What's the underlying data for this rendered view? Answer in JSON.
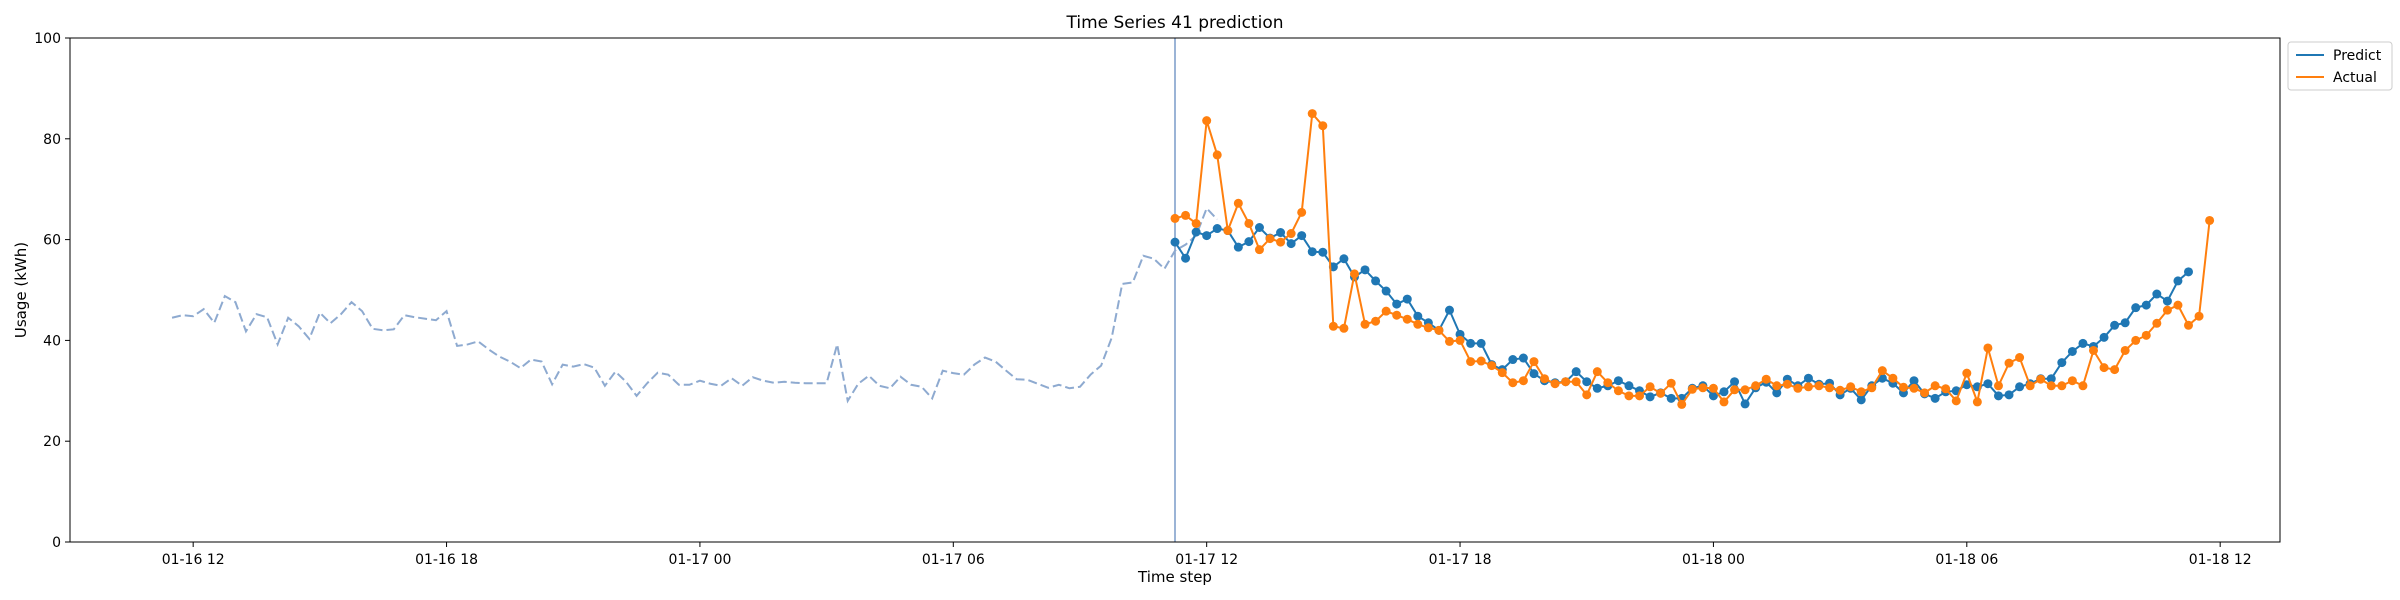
{
  "chart_data": {
    "type": "line",
    "title": "Time Series 41 prediction",
    "xlabel": "Time step",
    "ylabel": "Usage (kWh)",
    "ylim": [
      0,
      100
    ],
    "xlim": [
      "2024-01-16 09:05",
      "2024-01-18 13:25"
    ],
    "yticks": [
      0,
      20,
      40,
      60,
      80,
      100
    ],
    "xticks": [
      {
        "t": "2024-01-16 12:00",
        "label": "01-16 12"
      },
      {
        "t": "2024-01-16 18:00",
        "label": "01-16 18"
      },
      {
        "t": "2024-01-17 00:00",
        "label": "01-17 00"
      },
      {
        "t": "2024-01-17 06:00",
        "label": "01-17 06"
      },
      {
        "t": "2024-01-17 12:00",
        "label": "01-17 12"
      },
      {
        "t": "2024-01-17 18:00",
        "label": "01-17 18"
      },
      {
        "t": "2024-01-18 00:00",
        "label": "01-18 00"
      },
      {
        "t": "2024-01-18 06:00",
        "label": "01-18 06"
      },
      {
        "t": "2024-01-18 12:00",
        "label": "01-18 12"
      }
    ],
    "grid": false,
    "legend_position": "top-right, outside plot",
    "forecast_start": "2024-01-17 11:15",
    "colors": {
      "predict": "#1f77b4",
      "actual": "#ff7f0e",
      "history": "#8eaad0",
      "divider": "#7a9cc8"
    },
    "history": {
      "start": "2024-01-16 11:30",
      "step_minutes": 15,
      "values": [
        44.5,
        45.0,
        44.8,
        46.2,
        43.5,
        48.8,
        47.6,
        41.8,
        45.2,
        44.6,
        39.2,
        44.5,
        42.8,
        40.3,
        45.5,
        43.4,
        45.2,
        47.6,
        45.8,
        42.3,
        42.0,
        42.2,
        45.0,
        44.6,
        44.3,
        44.0,
        45.8,
        38.9,
        39.2,
        39.8,
        38.2,
        36.8,
        35.8,
        34.5,
        36.2,
        35.8,
        31.3,
        35.2,
        34.8,
        35.3,
        34.6,
        31.0,
        33.8,
        31.8,
        29.0,
        31.5,
        33.6,
        33.2,
        31.2,
        31.2,
        32.0,
        31.4,
        31.0,
        32.5,
        31.0,
        32.7,
        32.0,
        31.6,
        31.8,
        31.6,
        31.5,
        31.5,
        31.5,
        39.2,
        28.0,
        31.4,
        33.0,
        31.0,
        30.5,
        32.8,
        31.2,
        30.8,
        28.5,
        34.0,
        33.5,
        33.2,
        35.2,
        36.6,
        35.8,
        34.0,
        32.3,
        32.2,
        31.4,
        30.6,
        31.2,
        30.5,
        30.8,
        33.2,
        35.0,
        40.5,
        51.2,
        51.5,
        56.8,
        56.2,
        54.2,
        57.8,
        59.0,
        60.8,
        66.2,
        64.0
      ]
    },
    "series": [
      {
        "name": "Predict",
        "start": "2024-01-17 11:15",
        "step_minutes": 15,
        "values": [
          59.5,
          56.3,
          61.5,
          60.8,
          62.2,
          61.8,
          58.5,
          59.6,
          62.4,
          60.3,
          61.4,
          59.2,
          60.8,
          57.6,
          57.5,
          54.6,
          56.2,
          52.6,
          54.0,
          51.8,
          49.8,
          47.2,
          48.2,
          44.8,
          43.5,
          42.0,
          46.0,
          41.2,
          39.4,
          39.4,
          35.2,
          34.2,
          36.2,
          36.5,
          33.4,
          32.0,
          31.6,
          31.8,
          33.8,
          31.8,
          30.5,
          31.0,
          32.0,
          31.0,
          30.0,
          28.8,
          29.6,
          28.5,
          28.5,
          30.5,
          31.0,
          29.0,
          29.8,
          31.8,
          27.4,
          30.6,
          31.7,
          29.6,
          32.3,
          31.0,
          32.5,
          31.3,
          31.5,
          29.2,
          30.5,
          28.2,
          31.0,
          32.5,
          31.5,
          29.6,
          32.0,
          29.4,
          28.5,
          29.8,
          30.0,
          31.2,
          30.8,
          31.4,
          29.0,
          29.2,
          30.8,
          31.4,
          32.4,
          32.4,
          35.6,
          37.8,
          39.4,
          38.8,
          40.6,
          43.0,
          43.5,
          46.5,
          47.0,
          49.2,
          47.8,
          51.8,
          53.6
        ]
      },
      {
        "name": "Actual",
        "start": "2024-01-17 11:15",
        "step_minutes": 15,
        "values": [
          64.2,
          64.8,
          63.2,
          83.6,
          76.8,
          61.8,
          67.2,
          63.2,
          58.0,
          60.2,
          59.5,
          61.2,
          65.4,
          85.0,
          82.6,
          42.8,
          42.4,
          53.2,
          43.2,
          43.8,
          45.8,
          45.0,
          44.2,
          43.2,
          42.5,
          42.0,
          39.8,
          40.0,
          35.8,
          35.9,
          35.0,
          33.6,
          31.6,
          32.0,
          35.8,
          32.4,
          31.4,
          31.8,
          31.8,
          29.2,
          33.8,
          31.6,
          30.0,
          29.0,
          29.0,
          30.8,
          29.5,
          31.5,
          27.3,
          30.3,
          30.6,
          30.5,
          27.8,
          30.2,
          30.2,
          31.0,
          32.3,
          31.0,
          31.3,
          30.5,
          30.8,
          31.0,
          30.6,
          30.1,
          30.8,
          29.8,
          30.6,
          34.0,
          32.5,
          30.7,
          30.5,
          29.6,
          31.0,
          30.4,
          28.0,
          33.5,
          27.8,
          38.5,
          31.0,
          35.5,
          36.6,
          31.0,
          32.3,
          31.0,
          31.0,
          32.0,
          31.0,
          38.0,
          34.6,
          34.2,
          38.0,
          40.0,
          41.0,
          43.4,
          46.0,
          47.0,
          43.0,
          44.8,
          63.8
        ]
      }
    ]
  }
}
